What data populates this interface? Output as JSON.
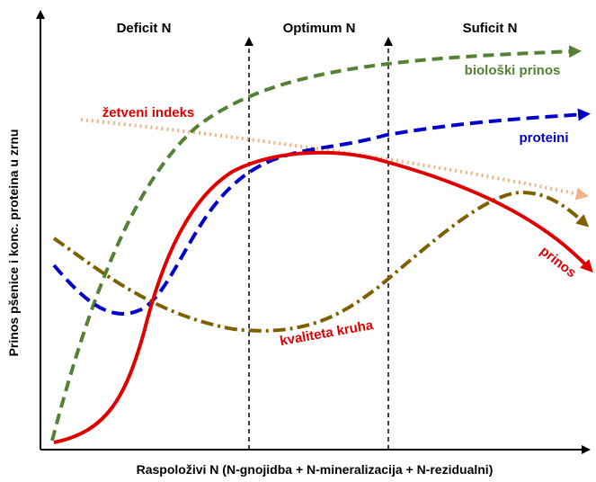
{
  "regions": [
    "Deficit N",
    "Optimum N",
    "Suficit N"
  ],
  "curves": {
    "biomass": "biološki prinos",
    "harvest_index": "žetveni indeks",
    "protein": "proteini",
    "yield": "prinos",
    "bread_quality": "kvaliteta kruha"
  },
  "y_axis_label": "Prinos pšenice i konc. proteina u zrnu",
  "x_axis_label": "Raspoloživi N (N-gnojidba + N-mineralizacija + N-rezidualni)"
}
